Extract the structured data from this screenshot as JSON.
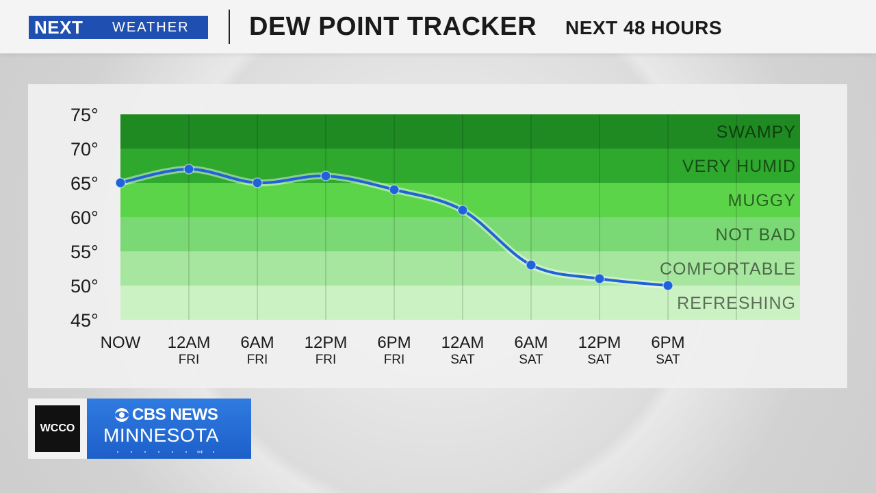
{
  "header": {
    "logo_next": "NEXT",
    "logo_weather": "WEATHER",
    "title": "DEW POINT TRACKER",
    "subtitle": "NEXT 48 HOURS"
  },
  "chart_data": {
    "type": "line",
    "title": "DEW POINT TRACKER",
    "subtitle": "NEXT 48 HOURS",
    "ylim": [
      45,
      75
    ],
    "yticks": [
      45,
      50,
      55,
      60,
      65,
      70,
      75
    ],
    "ytick_suffix": "°",
    "categories": [
      "NOW",
      "12AM",
      "6AM",
      "12PM",
      "6PM",
      "12AM",
      "6AM",
      "12PM",
      "6PM"
    ],
    "category_days": [
      "",
      "FRI",
      "FRI",
      "FRI",
      "FRI",
      "SAT",
      "SAT",
      "SAT",
      "SAT"
    ],
    "series": [
      {
        "values": [
          65,
          67,
          65,
          66,
          64,
          61,
          53,
          51,
          50
        ],
        "color": "#1f63d8"
      }
    ],
    "bands": [
      {
        "label": "SWAMPY",
        "from": 70,
        "to": 75,
        "color": "#1f8a22"
      },
      {
        "label": "VERY HUMID",
        "from": 65,
        "to": 70,
        "color": "#2fa82e"
      },
      {
        "label": "MUGGY",
        "from": 60,
        "to": 65,
        "color": "#5cd44a"
      },
      {
        "label": "NOT BAD",
        "from": 55,
        "to": 60,
        "color": "#7ad974"
      },
      {
        "label": "COMFORTABLE",
        "from": 50,
        "to": 55,
        "color": "#a6e69e"
      },
      {
        "label": "REFRESHING",
        "from": 45,
        "to": 50,
        "color": "#cbf2c2"
      }
    ],
    "grid": true
  },
  "footer": {
    "station": "WCCO",
    "network": "CBS NEWS",
    "region": "MINNESOTA"
  }
}
